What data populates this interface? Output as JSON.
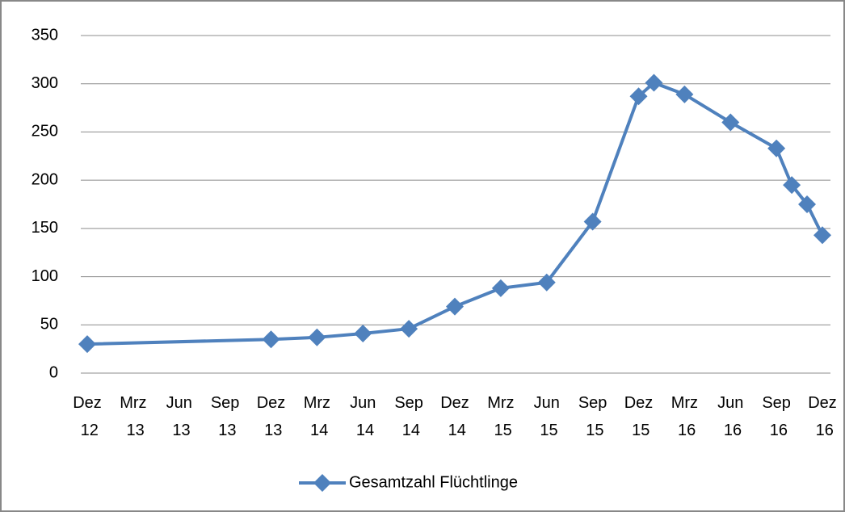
{
  "chart_data": {
    "type": "line",
    "x": [
      0,
      12,
      15,
      18,
      21,
      24,
      27,
      30,
      33,
      36,
      37,
      39,
      42,
      45,
      46,
      47,
      48
    ],
    "series": [
      {
        "name": "Gesamtzahl Flüchtlinge",
        "color": "#4f81bd",
        "values": [
          30,
          35,
          37,
          41,
          46,
          69,
          88,
          94,
          157,
          287,
          301,
          289,
          260,
          233,
          195,
          175,
          143
        ]
      }
    ],
    "xlim": [
      0,
      48
    ],
    "xticks": [
      {
        "value": 0,
        "label": "Dez 12"
      },
      {
        "value": 3,
        "label": "Mrz 13"
      },
      {
        "value": 6,
        "label": "Jun 13"
      },
      {
        "value": 9,
        "label": "Sep 13"
      },
      {
        "value": 12,
        "label": "Dez 13"
      },
      {
        "value": 15,
        "label": "Mrz 14"
      },
      {
        "value": 18,
        "label": "Jun 14"
      },
      {
        "value": 21,
        "label": "Sep 14"
      },
      {
        "value": 24,
        "label": "Dez 14"
      },
      {
        "value": 27,
        "label": "Mrz 15"
      },
      {
        "value": 30,
        "label": "Jun 15"
      },
      {
        "value": 33,
        "label": "Sep 15"
      },
      {
        "value": 36,
        "label": "Dez 15"
      },
      {
        "value": 39,
        "label": "Mrz 16"
      },
      {
        "value": 42,
        "label": "Jun 16"
      },
      {
        "value": 45,
        "label": "Sep 16"
      },
      {
        "value": 48,
        "label": "Dez 16"
      }
    ],
    "ylim": [
      0,
      350
    ],
    "yticks": [
      0,
      50,
      100,
      150,
      200,
      250,
      300,
      350
    ],
    "grid": true,
    "legend": "bottom"
  }
}
